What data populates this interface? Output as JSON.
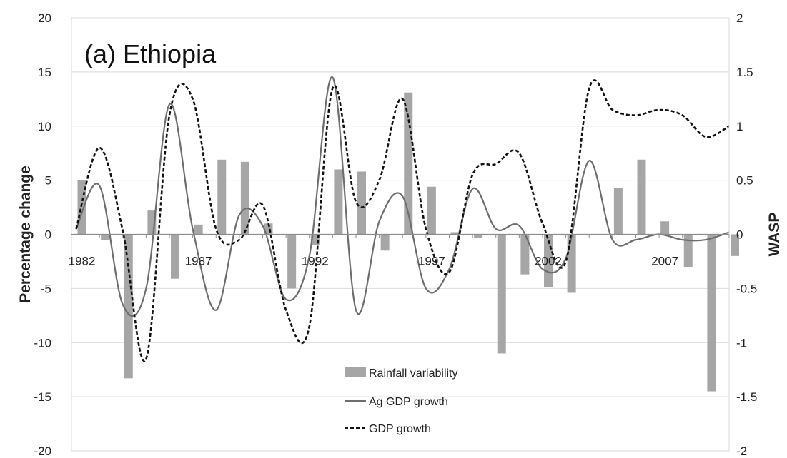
{
  "chart_data": {
    "type": "bar+line",
    "title": "(a) Ethiopia",
    "ylabel": "Percentage change",
    "y2label": "WASP",
    "ylim": [
      -20,
      20
    ],
    "y2lim": [
      -2,
      2
    ],
    "yticks": [
      -20,
      -15,
      -10,
      -5,
      0,
      5,
      10,
      15,
      20
    ],
    "y2ticks": [
      "-2",
      "-1.5",
      "-1",
      "-0.5",
      "0",
      "0.5",
      "1",
      "1.5",
      "2"
    ],
    "x": [
      1982,
      1983,
      1984,
      1985,
      1986,
      1987,
      1988,
      1989,
      1990,
      1991,
      1992,
      1993,
      1994,
      1995,
      1996,
      1997,
      1998,
      1999,
      2000,
      2001,
      2002,
      2003,
      2004,
      2005,
      2006,
      2007,
      2008,
      2009,
      2010
    ],
    "xtick_labels": [
      "1982",
      "1987",
      "1992",
      "1997",
      "2002",
      "2007"
    ],
    "xtick_values": [
      1982,
      1987,
      1992,
      1997,
      2002,
      2007
    ],
    "grid": true,
    "legend_position": "bottom-center",
    "series": [
      {
        "name": "Rainfall variability",
        "kind": "bar",
        "axis": "right",
        "color": "#a6a6a6",
        "values": [
          0.5,
          -0.05,
          -1.33,
          0.22,
          -0.41,
          0.09,
          0.69,
          0.67,
          0.1,
          -0.5,
          -0.1,
          0.6,
          0.58,
          -0.15,
          1.31,
          0.44,
          0.02,
          -0.03,
          -1.1,
          -0.37,
          -0.49,
          -0.54,
          0,
          0.43,
          0.69,
          0.12,
          -0.3,
          -1.45,
          -0.2
        ]
      },
      {
        "name": "Ag GDP growth",
        "kind": "line",
        "axis": "left",
        "color": "#6d6d6d",
        "values": [
          0.5,
          4.5,
          -6.5,
          -5.0,
          12.0,
          0.5,
          -7.0,
          1.8,
          0.8,
          -6.0,
          -2.0,
          14.5,
          -7.0,
          1.2,
          3.5,
          -5.0,
          -3.2,
          4.2,
          0.5,
          0.8,
          -3.2,
          -2.2,
          6.8,
          -0.5,
          -0.5,
          0,
          -0.5,
          -0.5,
          0.2
        ]
      },
      {
        "name": "GDP growth",
        "kind": "dashed-line",
        "axis": "left",
        "color": "#111111",
        "values": [
          0.5,
          8.0,
          0.3,
          -11.5,
          11.0,
          12.5,
          0.5,
          -0.5,
          2.7,
          -7.0,
          -8.5,
          13.5,
          3.0,
          5.0,
          12.5,
          0.5,
          -3.5,
          5.5,
          6.5,
          7.5,
          1.0,
          -2.5,
          13.5,
          11.5,
          11.0,
          11.5,
          11.0,
          9.0,
          10.0
        ]
      }
    ]
  }
}
